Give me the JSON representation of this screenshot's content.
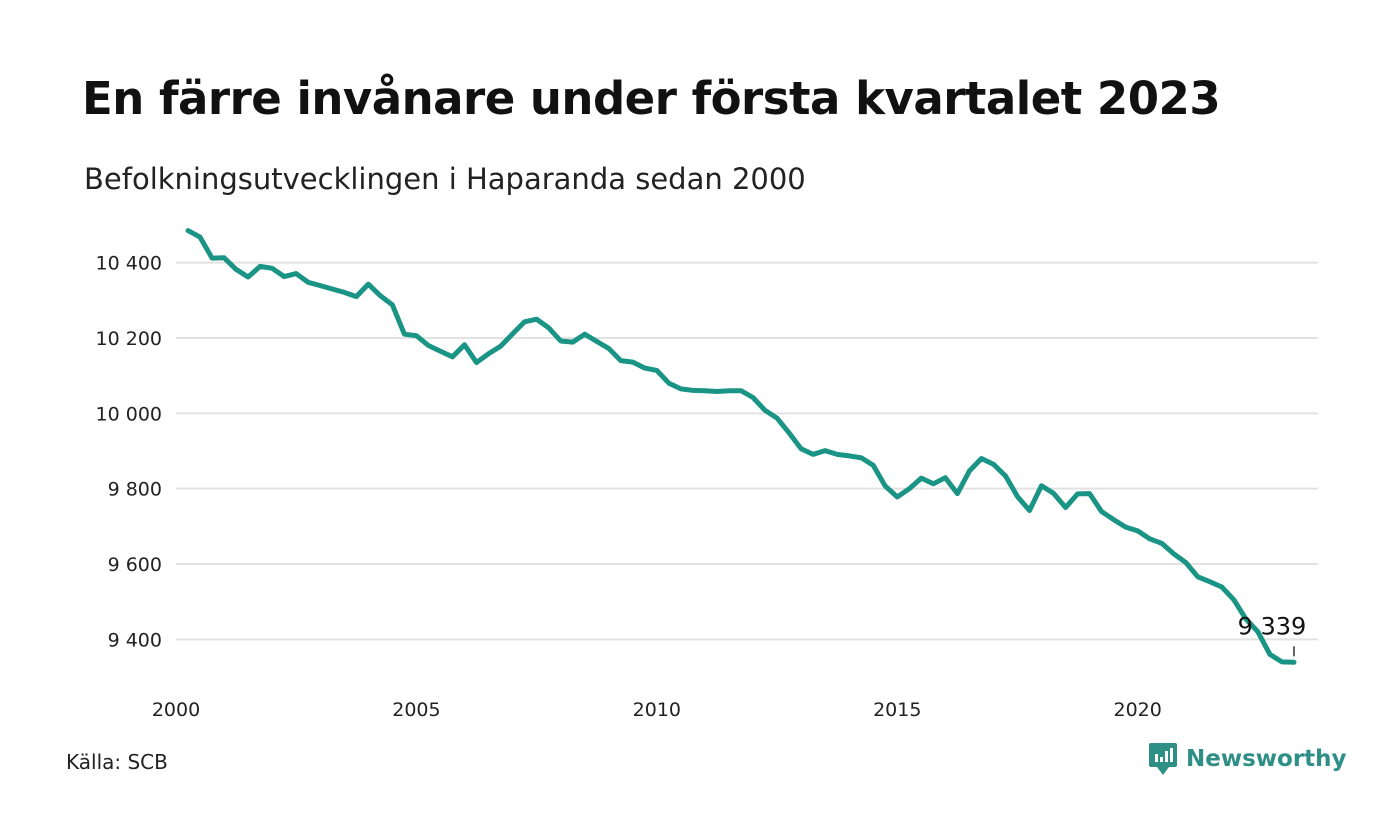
{
  "title": "En färre invånare under första kvartalet 2023",
  "subtitle": "Befolkningsutvecklingen i Haparanda sedan 2000",
  "source": "Källa: SCB",
  "brand": "Newsworthy",
  "colors": {
    "line": "#1a9585",
    "grid": "#e2e2e2",
    "brand": "#2e8f86"
  },
  "chart_data": {
    "type": "line",
    "title": "En färre invånare under första kvartalet 2023",
    "subtitle": "Befolkningsutvecklingen i Haparanda sedan 2000",
    "xlim": [
      2000,
      2023.75
    ],
    "ylim": [
      9300,
      10500
    ],
    "grid": true,
    "x_ticks": [
      2000,
      2005,
      2010,
      2015,
      2020
    ],
    "x_tick_labels": [
      "2000",
      "2005",
      "2010",
      "2015",
      "2020"
    ],
    "y_ticks": [
      9400,
      9600,
      9800,
      10000,
      10200,
      10400
    ],
    "y_tick_labels": [
      "9 400",
      "9 600",
      "9 800",
      "10 000",
      "10 200",
      "10 400"
    ],
    "last_value_label": "9 339",
    "series": [
      {
        "x": [
          2000.25,
          2000.5,
          2000.75,
          2001.0,
          2001.25,
          2001.5,
          2001.75,
          2002.0,
          2002.25,
          2002.5,
          2002.75,
          2003.0,
          2003.25,
          2003.5,
          2003.75,
          2004.0,
          2004.25,
          2004.5,
          2004.75,
          2005.0,
          2005.25,
          2005.5,
          2005.75,
          2006.0,
          2006.25,
          2006.5,
          2006.75,
          2007.0,
          2007.25,
          2007.5,
          2007.75,
          2008.0,
          2008.25,
          2008.5,
          2008.75,
          2009.0,
          2009.25,
          2009.5,
          2009.75,
          2010.0,
          2010.25,
          2010.5,
          2010.75,
          2011.0,
          2011.25,
          2011.5,
          2011.75,
          2012.0,
          2012.25,
          2012.5,
          2012.75,
          2013.0,
          2013.25,
          2013.5,
          2013.75,
          2014.0,
          2014.25,
          2014.5,
          2014.75,
          2015.0,
          2015.25,
          2015.5,
          2015.75,
          2016.0,
          2016.25,
          2016.5,
          2016.75,
          2017.0,
          2017.25,
          2017.5,
          2017.75,
          2018.0,
          2018.25,
          2018.5,
          2018.75,
          2019.0,
          2019.25,
          2019.5,
          2019.75,
          2020.0,
          2020.25,
          2020.5,
          2020.75,
          2021.0,
          2021.25,
          2021.5,
          2021.75,
          2022.0,
          2022.25,
          2022.5,
          2022.75,
          2023.0,
          2023.25
        ],
        "y": [
          10485,
          10468,
          10412,
          10413,
          10382,
          10362,
          10390,
          10385,
          10363,
          10371,
          10348,
          10339,
          10330,
          10321,
          10310,
          10343,
          10312,
          10288,
          10210,
          10206,
          10180,
          10165,
          10150,
          10182,
          10135,
          10158,
          10178,
          10211,
          10243,
          10250,
          10227,
          10192,
          10189,
          10210,
          10191,
          10172,
          10140,
          10136,
          10120,
          10114,
          10080,
          10065,
          10061,
          10060,
          10058,
          10060,
          10060,
          10042,
          10008,
          9987,
          9948,
          9906,
          9891,
          9901,
          9891,
          9887,
          9882,
          9862,
          9807,
          9778,
          9800,
          9828,
          9813,
          9829,
          9787,
          9847,
          9880,
          9865,
          9834,
          9779,
          9742,
          9808,
          9788,
          9750,
          9786,
          9787,
          9739,
          9718,
          9698,
          9688,
          9667,
          9655,
          9627,
          9604,
          9566,
          9553,
          9539,
          9505,
          9454,
          9420,
          9360,
          9340,
          9339
        ]
      }
    ]
  }
}
